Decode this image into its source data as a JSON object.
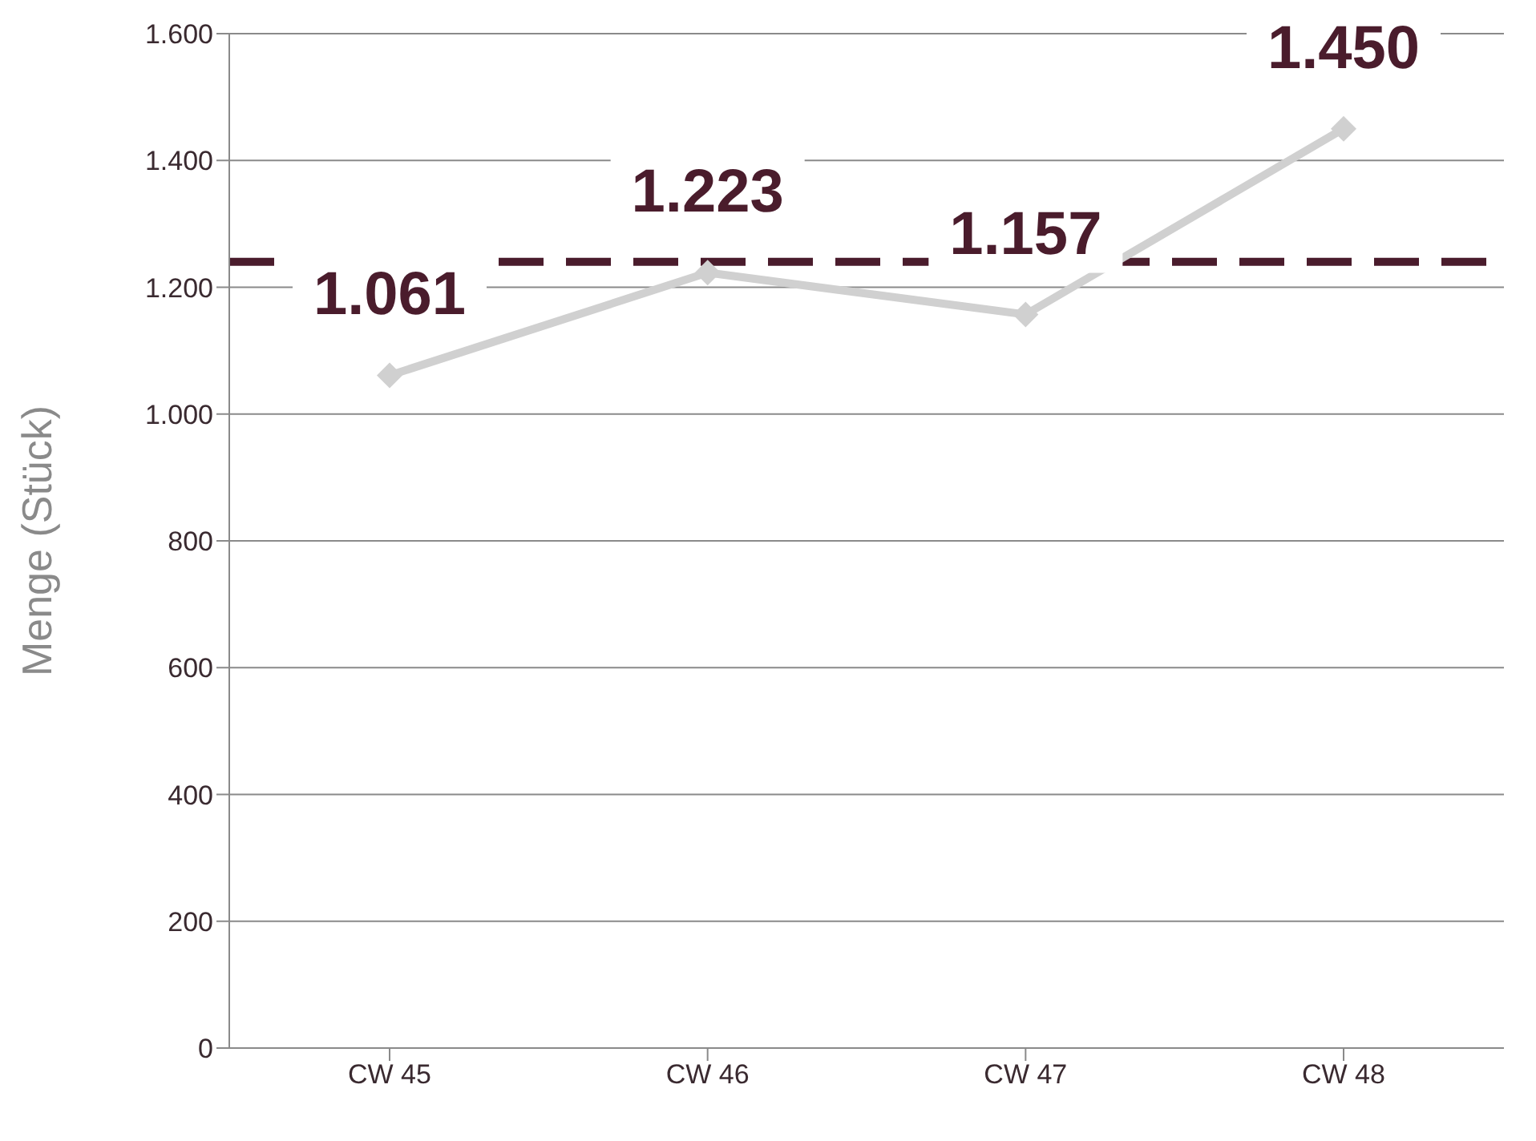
{
  "chart_data": {
    "type": "line",
    "ylabel": "Menge (Stück)",
    "categories": [
      "CW 45",
      "CW 46",
      "CW 47",
      "CW 48"
    ],
    "series": [
      {
        "color": "#d0d0d0",
        "values": [
          1061,
          1223,
          1157,
          1450
        ],
        "value_labels": [
          "1.061",
          "1.223",
          "1.157",
          "1.450"
        ]
      }
    ],
    "ylim": [
      0,
      1600
    ],
    "yticks": [
      {
        "value": 0,
        "label": "0"
      },
      {
        "value": 200,
        "label": "200"
      },
      {
        "value": 400,
        "label": "400"
      },
      {
        "value": 600,
        "label": "600"
      },
      {
        "value": 800,
        "label": "800"
      },
      {
        "value": 1000,
        "label": "1.000"
      },
      {
        "value": 1200,
        "label": "1.200"
      },
      {
        "value": 1400,
        "label": "1.400"
      },
      {
        "value": 1600,
        "label": "1.600"
      }
    ],
    "ref_lines": [
      {
        "axis": "y",
        "value": 1240,
        "color": "#4a1c2c",
        "line_style": "dashed"
      }
    ],
    "grid": "y",
    "marker": "diamond",
    "line_style": "solid"
  }
}
